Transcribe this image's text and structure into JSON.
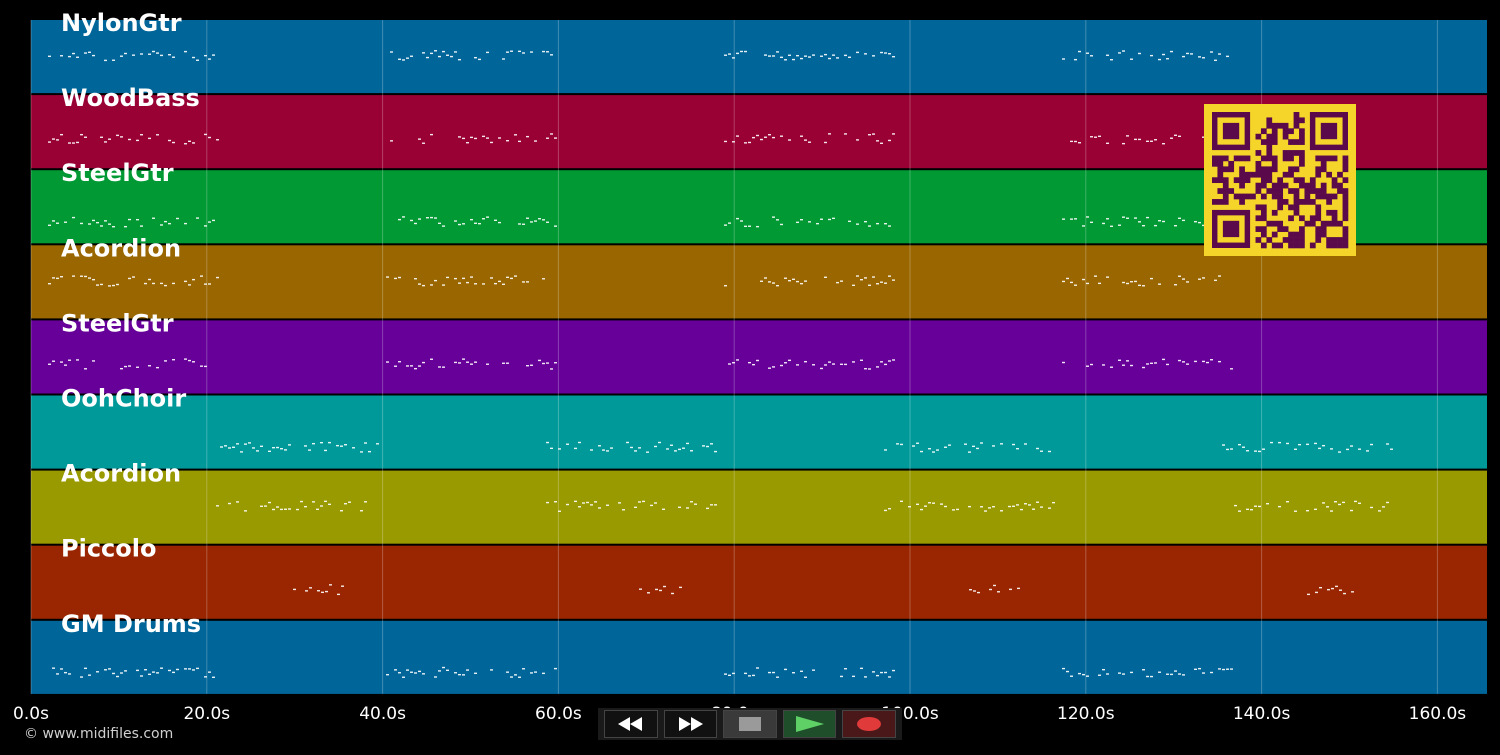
{
  "tracks": [
    {
      "name": "NylonGtr",
      "color": "#006699"
    },
    {
      "name": "WoodBass",
      "color": "#990033"
    },
    {
      "name": "SteelGtr",
      "color": "#009933"
    },
    {
      "name": "Acordion",
      "color": "#996600"
    },
    {
      "name": "SteelGtr",
      "color": "#660099"
    },
    {
      "name": "OohChoir",
      "color": "#009999"
    },
    {
      "name": "Acordion",
      "color": "#999900"
    },
    {
      "name": "Piccolo",
      "color": "#992600"
    },
    {
      "name": "GM Drums",
      "color": "#006699"
    }
  ],
  "time_axis": {
    "ticks": [
      "0.0s",
      "20.0s",
      "40.0s",
      "60.0s",
      "80.0s",
      "100.0s",
      "120.0s",
      "140.0s",
      "160.0s"
    ]
  },
  "copyright": "© www.midifiles.com",
  "controls": {
    "rewind_icon": "rewind-icon",
    "fast_forward_icon": "fast-forward-icon",
    "stop_icon": "stop-icon",
    "play_icon": "play-icon",
    "record_icon": "record-icon"
  },
  "qr_code": {
    "color": "#f5d52a",
    "dark": "#5a0a4a"
  }
}
